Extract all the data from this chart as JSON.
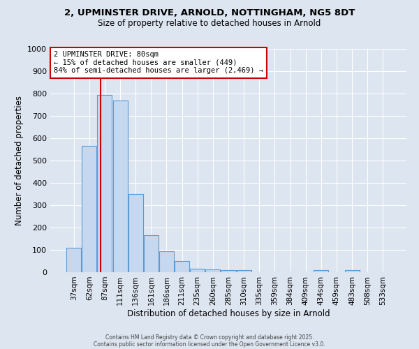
{
  "title_line1": "2, UPMINSTER DRIVE, ARNOLD, NOTTINGHAM, NG5 8DT",
  "title_line2": "Size of property relative to detached houses in Arnold",
  "xlabel": "Distribution of detached houses by size in Arnold",
  "ylabel": "Number of detached properties",
  "bin_labels": [
    "37sqm",
    "62sqm",
    "87sqm",
    "111sqm",
    "136sqm",
    "161sqm",
    "186sqm",
    "211sqm",
    "235sqm",
    "260sqm",
    "285sqm",
    "310sqm",
    "335sqm",
    "359sqm",
    "384sqm",
    "409sqm",
    "434sqm",
    "459sqm",
    "483sqm",
    "508sqm",
    "533sqm"
  ],
  "bar_heights": [
    110,
    565,
    795,
    770,
    350,
    165,
    95,
    50,
    15,
    12,
    10,
    8,
    0,
    0,
    0,
    0,
    8,
    0,
    8,
    0,
    0
  ],
  "bar_color": "#c5d8f0",
  "bar_edge_color": "#5b9bd5",
  "red_line_x": 1.72,
  "annotation_title": "2 UPMINSTER DRIVE: 80sqm",
  "annotation_line2": "← 15% of detached houses are smaller (449)",
  "annotation_line3": "84% of semi-detached houses are larger (2,469) →",
  "annotation_box_color": "#ffffff",
  "annotation_border_color": "#cc0000",
  "red_line_color": "#cc0000",
  "ylim": [
    0,
    1000
  ],
  "yticks": [
    0,
    100,
    200,
    300,
    400,
    500,
    600,
    700,
    800,
    900,
    1000
  ],
  "background_color": "#dde5f0",
  "grid_color": "#ffffff",
  "footer_line1": "Contains HM Land Registry data © Crown copyright and database right 2025.",
  "footer_line2": "Contains public sector information licensed under the Open Government Licence v3.0."
}
